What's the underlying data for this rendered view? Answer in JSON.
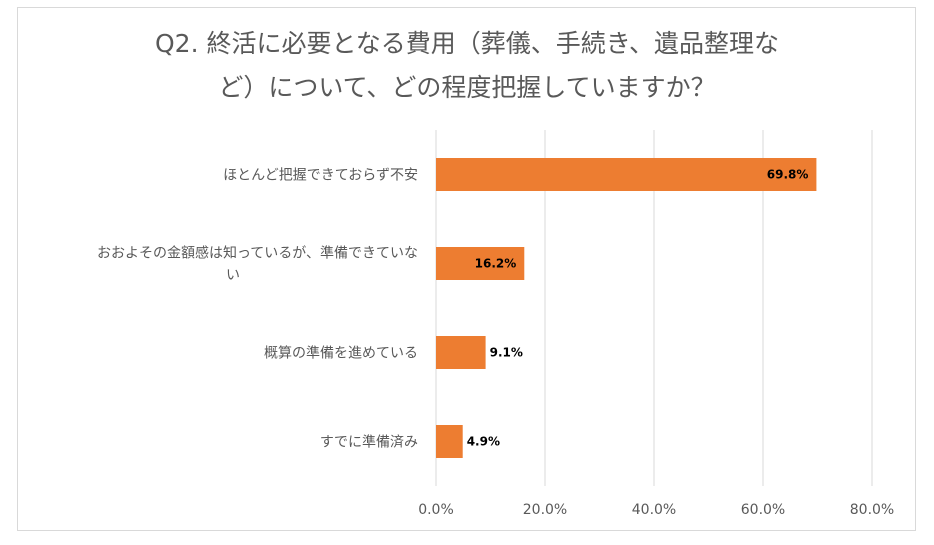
{
  "chart_data": {
    "type": "bar",
    "orientation": "horizontal",
    "title_lines": [
      "Q2. 終活に必要となる費用（葬儀、手続き、遺品整理な",
      "ど）について、どの程度把握していますか？"
    ],
    "categories": [
      "ほとんど把握できておらず不安",
      "おおよその金額感は知っているが、準備できていない",
      "概算の準備を進めている",
      "すでに準備済み"
    ],
    "category_label_lines": [
      [
        "ほとんど把握できておらず不安"
      ],
      [
        "おおよその金額感は知っているが、準備できていな",
        "い"
      ],
      [
        "概算の準備を進めている"
      ],
      [
        "すでに準備済み"
      ]
    ],
    "values": [
      69.8,
      16.2,
      9.1,
      4.9
    ],
    "data_labels": [
      "69.8%",
      "16.2%",
      "9.1%",
      "4.9%"
    ],
    "xlim": [
      0,
      80
    ],
    "ticks": [
      0,
      20,
      40,
      60,
      80
    ],
    "tick_labels": [
      "0.0%",
      "20.0%",
      "40.0%",
      "60.0%",
      "80.0%"
    ],
    "bar_color": "#ED7D31",
    "grid": true,
    "gridline_color": "#d9d9d9"
  }
}
